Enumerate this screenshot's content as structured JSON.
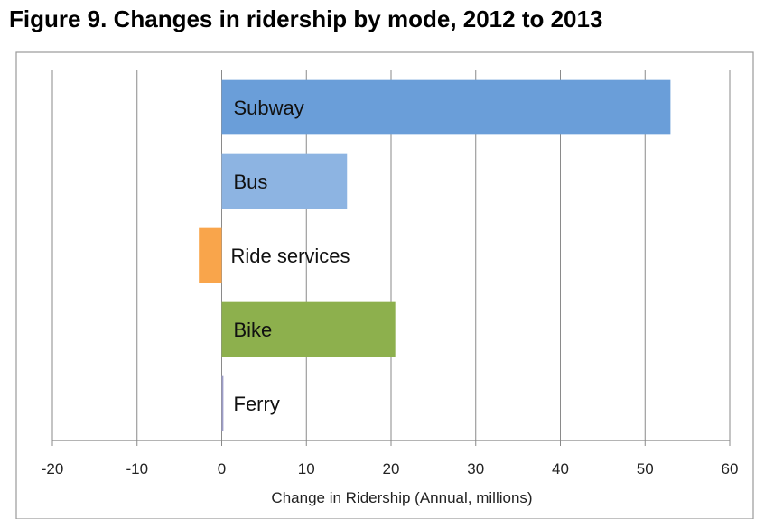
{
  "figure": {
    "title": "Figure 9. Changes in ridership by mode, 2012 to 2013"
  },
  "chart_data": {
    "type": "bar",
    "orientation": "horizontal",
    "categories": [
      "Subway",
      "Bus",
      "Ride services",
      "Bike",
      "Ferry"
    ],
    "values": [
      53,
      14.8,
      -2.7,
      20.5,
      0.2
    ],
    "colors": [
      "#6a9ed9",
      "#8db4e2",
      "#f9a54b",
      "#8db04d",
      "#9d9dc8"
    ],
    "xlabel": "Change in Ridership (Annual, millions)",
    "ylabel": "",
    "xlim": [
      -20,
      60
    ],
    "xticks": [
      -20,
      -10,
      0,
      10,
      20,
      30,
      40,
      50,
      60
    ],
    "xtick_labels": [
      "-20",
      "-10",
      "0",
      "10",
      "20",
      "30",
      "40",
      "50",
      "60"
    ],
    "grid": true,
    "legend": "none"
  }
}
